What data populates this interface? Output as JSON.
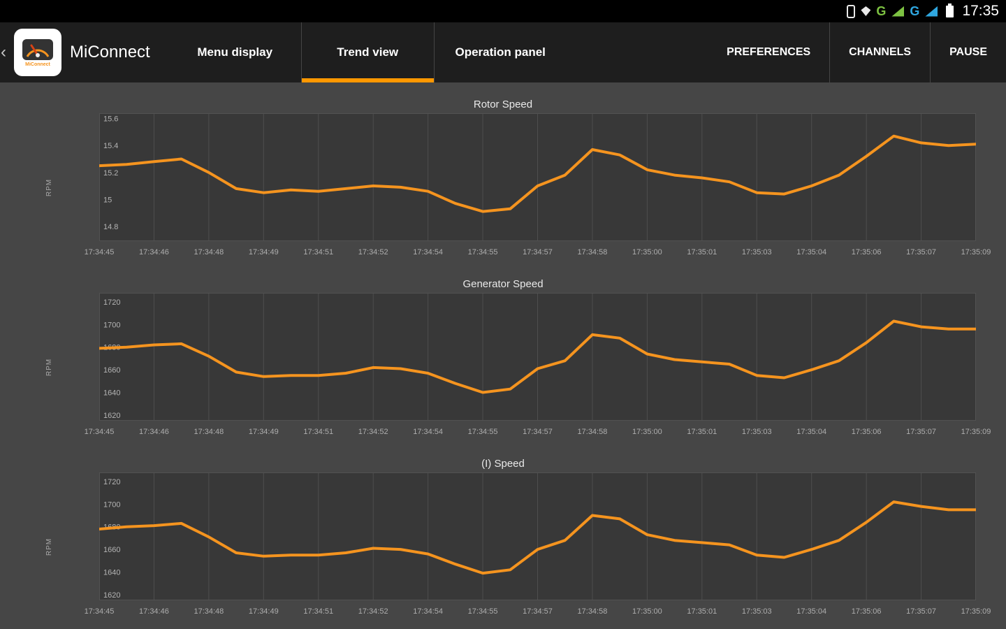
{
  "status_bar": {
    "time": "17:35",
    "g_label_green": "G",
    "g_label_blue": "G"
  },
  "app_bar": {
    "back_chevron": "‹",
    "app_icon_label": "MiConnect",
    "title": "MiConnect",
    "tabs": [
      {
        "label": "Menu display",
        "active": false
      },
      {
        "label": "Trend view",
        "active": true
      },
      {
        "label": "Operation panel",
        "active": false
      }
    ],
    "actions": [
      {
        "label": "PREFERENCES"
      },
      {
        "label": "CHANNELS"
      },
      {
        "label": "PAUSE"
      }
    ]
  },
  "colors": {
    "accent_orange": "#ff9800",
    "line_orange": "#f5941f",
    "signal_green": "#7dc242",
    "signal_blue": "#2fa7e0"
  },
  "chart_data": [
    {
      "type": "line",
      "title": "Rotor Speed",
      "ylabel": "RPM",
      "line_color": "#f5941f",
      "ylim": [
        14.69,
        15.64
      ],
      "yticks": [
        14.8,
        15.0,
        15.2,
        15.4,
        15.6
      ],
      "ytick_labels": [
        "14.8",
        "15",
        "15.2",
        "15.4",
        "15.6"
      ],
      "x_tick_labels": [
        "17:34:45",
        "17:34:46",
        "17:34:48",
        "17:34:49",
        "17:34:51",
        "17:34:52",
        "17:34:54",
        "17:34:55",
        "17:34:57",
        "17:34:58",
        "17:35:00",
        "17:35:01",
        "17:35:03",
        "17:35:04",
        "17:35:06",
        "17:35:07",
        "17:35:09"
      ],
      "x": [
        0,
        0.75,
        1.5,
        2.25,
        3,
        3.75,
        4.5,
        5.25,
        6,
        6.75,
        7.5,
        8.25,
        9,
        9.75,
        10.5,
        11.25,
        12,
        12.75,
        13.5,
        14.25,
        15,
        15.75,
        16.5,
        17.25,
        18,
        18.75,
        19.5,
        20.25,
        21,
        21.75,
        22.5,
        23.25,
        24
      ],
      "values": [
        15.25,
        15.26,
        15.28,
        15.3,
        15.2,
        15.08,
        15.05,
        15.07,
        15.06,
        15.08,
        15.1,
        15.09,
        15.06,
        14.97,
        14.91,
        14.93,
        15.1,
        15.18,
        15.37,
        15.33,
        15.22,
        15.18,
        15.16,
        15.13,
        15.05,
        15.04,
        15.1,
        15.18,
        15.32,
        15.47,
        15.42,
        15.4,
        15.41
      ]
    },
    {
      "type": "line",
      "title": "Generator Speed",
      "ylabel": "RPM",
      "line_color": "#f5941f",
      "ylim": [
        1615,
        1728
      ],
      "yticks": [
        1620,
        1640,
        1660,
        1680,
        1700,
        1720
      ],
      "ytick_labels": [
        "1620",
        "1640",
        "1660",
        "1680",
        "1700",
        "1720"
      ],
      "x_tick_labels": [
        "17:34:45",
        "17:34:46",
        "17:34:48",
        "17:34:49",
        "17:34:51",
        "17:34:52",
        "17:34:54",
        "17:34:55",
        "17:34:57",
        "17:34:58",
        "17:35:00",
        "17:35:01",
        "17:35:03",
        "17:35:04",
        "17:35:06",
        "17:35:07",
        "17:35:09"
      ],
      "x": [
        0,
        0.75,
        1.5,
        2.25,
        3,
        3.75,
        4.5,
        5.25,
        6,
        6.75,
        7.5,
        8.25,
        9,
        9.75,
        10.5,
        11.25,
        12,
        12.75,
        13.5,
        14.25,
        15,
        15.75,
        16.5,
        17.25,
        18,
        18.75,
        19.5,
        20.25,
        21,
        21.75,
        22.5,
        23.25,
        24
      ],
      "values": [
        1679,
        1680,
        1682,
        1683,
        1672,
        1658,
        1654,
        1655,
        1655,
        1657,
        1662,
        1661,
        1657,
        1648,
        1640,
        1643,
        1661,
        1668,
        1691,
        1688,
        1674,
        1669,
        1667,
        1665,
        1655,
        1653,
        1660,
        1668,
        1684,
        1703,
        1698,
        1696,
        1696
      ]
    },
    {
      "type": "line",
      "title": "(I) Speed",
      "ylabel": "RPM",
      "line_color": "#f5941f",
      "ylim": [
        1615,
        1728
      ],
      "yticks": [
        1620,
        1640,
        1660,
        1680,
        1700,
        1720
      ],
      "ytick_labels": [
        "1620",
        "1640",
        "1660",
        "1680",
        "1700",
        "1720"
      ],
      "x_tick_labels": [
        "17:34:45",
        "17:34:46",
        "17:34:48",
        "17:34:49",
        "17:34:51",
        "17:34:52",
        "17:34:54",
        "17:34:55",
        "17:34:57",
        "17:34:58",
        "17:35:00",
        "17:35:01",
        "17:35:03",
        "17:35:04",
        "17:35:06",
        "17:35:07",
        "17:35:09"
      ],
      "x": [
        0,
        0.75,
        1.5,
        2.25,
        3,
        3.75,
        4.5,
        5.25,
        6,
        6.75,
        7.5,
        8.25,
        9,
        9.75,
        10.5,
        11.25,
        12,
        12.75,
        13.5,
        14.25,
        15,
        15.75,
        16.5,
        17.25,
        18,
        18.75,
        19.5,
        20.25,
        21,
        21.75,
        22.5,
        23.25,
        24
      ],
      "values": [
        1678,
        1680,
        1681,
        1683,
        1671,
        1657,
        1654,
        1655,
        1655,
        1657,
        1661,
        1660,
        1656,
        1647,
        1639,
        1642,
        1660,
        1668,
        1690,
        1687,
        1673,
        1668,
        1666,
        1664,
        1655,
        1653,
        1660,
        1668,
        1684,
        1702,
        1698,
        1695,
        1695
      ]
    }
  ]
}
